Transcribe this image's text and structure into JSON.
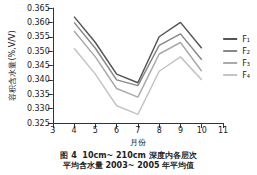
{
  "chart_data": {
    "type": "line",
    "title": "图 4  10cm~ 210cm 深度内各层次\n平均含水量 2003~ 2005 年平均值",
    "x_label": "月份",
    "y_label": "容积含水量(%,V/V)",
    "x": [
      4,
      5,
      6,
      7,
      8,
      9,
      10
    ],
    "series": [
      {
        "name": "F₁",
        "color": "#555555",
        "values": [
          0.362,
          0.353,
          0.342,
          0.339,
          0.355,
          0.36,
          0.351
        ]
      },
      {
        "name": "F₂",
        "color": "#888888",
        "values": [
          0.36,
          0.351,
          0.34,
          0.338,
          0.352,
          0.356,
          0.347
        ]
      },
      {
        "name": "F₃",
        "color": "#aaaaaa",
        "values": [
          0.357,
          0.348,
          0.337,
          0.334,
          0.349,
          0.353,
          0.343
        ]
      },
      {
        "name": "F₄",
        "color": "#c4c4c4",
        "values": [
          0.351,
          0.342,
          0.331,
          0.328,
          0.343,
          0.348,
          0.34
        ]
      }
    ],
    "xlim": [
      3,
      11
    ],
    "xticks": [
      3,
      4,
      5,
      6,
      7,
      8,
      9,
      10,
      11
    ],
    "ylim": [
      0.325,
      0.365
    ],
    "yticks": [
      0.325,
      {
        "value": 0.33,
        "label": "0.330"
      },
      0.335,
      {
        "value": 0.34,
        "label": "0.340"
      },
      0.345,
      {
        "value": 0.35,
        "label": "0.350"
      },
      0.355,
      {
        "value": 0.36,
        "label": "0.360"
      },
      0.365
    ],
    "marker": "none",
    "line_style": "solid",
    "grid": false,
    "legend": "right"
  }
}
